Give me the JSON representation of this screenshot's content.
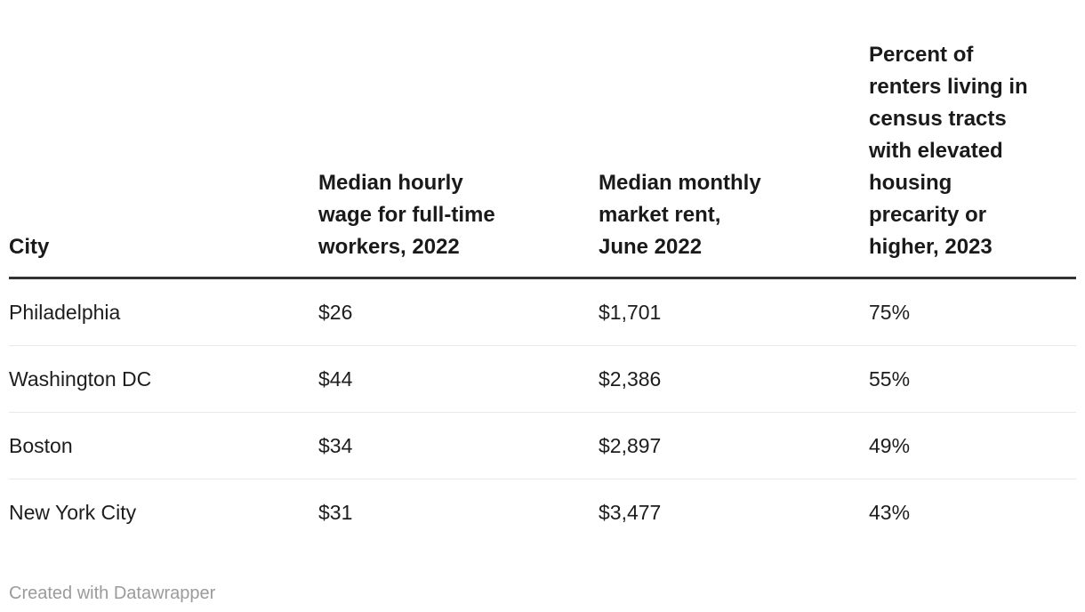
{
  "table": {
    "columns": [
      {
        "label": "City"
      },
      {
        "label": "Median hourly\nwage for full-time\nworkers, 2022"
      },
      {
        "label": "Median monthly\nmarket rent,\nJune 2022"
      },
      {
        "label": "Percent of\nrenters living in\ncensus tracts\nwith elevated\nhousing\nprecarity or\nhigher, 2023"
      }
    ],
    "rows": [
      [
        "Philadelphia",
        "$26",
        "$1,701",
        "75%"
      ],
      [
        "Washington DC",
        "$44",
        "$2,386",
        "55%"
      ],
      [
        "Boston",
        "$34",
        "$2,897",
        "49%"
      ],
      [
        "New York City",
        "$31",
        "$3,477",
        "43%"
      ]
    ]
  },
  "footer": {
    "attribution": "Created with Datawrapper"
  },
  "colors": {
    "text": "#1d1d1d",
    "header_text": "#1a1a1a",
    "header_border": "#333333",
    "row_divider": "#e8e8e8",
    "footer_text": "#9b9b9b",
    "background": "#ffffff"
  },
  "chart_data": {
    "type": "table",
    "columns": [
      "City",
      "Median hourly wage for full-time workers, 2022",
      "Median monthly market rent, June 2022",
      "Percent of renters living in census tracts with elevated housing precarity or higher, 2023"
    ],
    "rows": [
      {
        "city": "Philadelphia",
        "median_hourly_wage_2022": 26,
        "median_monthly_rent_june_2022": 1701,
        "pct_renters_elevated_precarity_2023": 75
      },
      {
        "city": "Washington DC",
        "median_hourly_wage_2022": 44,
        "median_monthly_rent_june_2022": 2386,
        "pct_renters_elevated_precarity_2023": 55
      },
      {
        "city": "Boston",
        "median_hourly_wage_2022": 34,
        "median_monthly_rent_june_2022": 2897,
        "pct_renters_elevated_precarity_2023": 49
      },
      {
        "city": "New York City",
        "median_hourly_wage_2022": 31,
        "median_monthly_rent_june_2022": 3477,
        "pct_renters_elevated_precarity_2023": 43
      }
    ],
    "title": "",
    "legend": "none",
    "grid": "horizontal row dividers only"
  }
}
